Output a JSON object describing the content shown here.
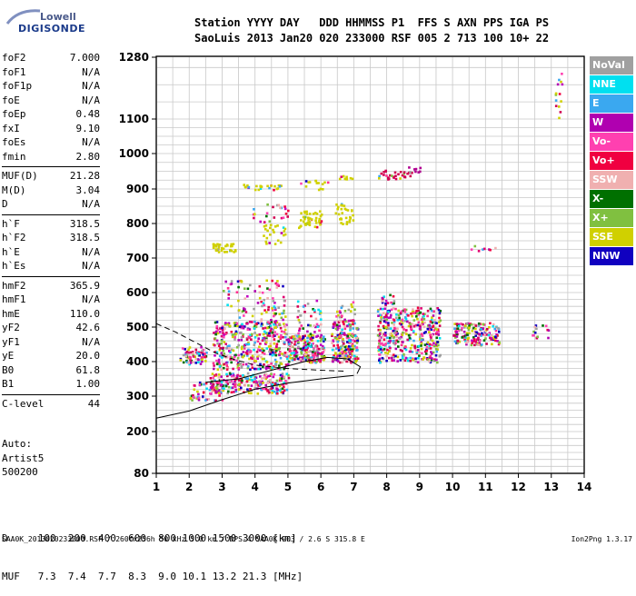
{
  "logo": {
    "line1": "Lowell",
    "line2": "DIGISONDE"
  },
  "header": {
    "row1": "Station YYYY DAY   DDD HHMMSS P1  FFS S AXN PPS IGA PS",
    "row2": "SaoLuis 2013 Jan20 020 233000 RSF 005 2 713 100 10+ 22"
  },
  "params": [
    {
      "name": "foF2",
      "value": "7.000"
    },
    {
      "name": "foF1",
      "value": "N/A"
    },
    {
      "name": "foF1p",
      "value": "N/A"
    },
    {
      "name": "foE",
      "value": "N/A"
    },
    {
      "name": "foEp",
      "value": "0.48"
    },
    {
      "name": "fxI",
      "value": "9.10"
    },
    {
      "name": "foEs",
      "value": "N/A"
    },
    {
      "name": "fmin",
      "value": "2.80"
    },
    {
      "sep": true
    },
    {
      "name": "MUF(D)",
      "value": "21.28"
    },
    {
      "name": "M(D)",
      "value": "3.04"
    },
    {
      "name": "D",
      "value": "N/A"
    },
    {
      "sep": true
    },
    {
      "name": "h`F",
      "value": "318.5"
    },
    {
      "name": "h`F2",
      "value": "318.5"
    },
    {
      "name": "h`E",
      "value": "N/A"
    },
    {
      "name": "h`Es",
      "value": "N/A"
    },
    {
      "sep": true
    },
    {
      "name": "hmF2",
      "value": "365.9"
    },
    {
      "name": "hmF1",
      "value": "N/A"
    },
    {
      "name": "hmE",
      "value": "110.0"
    },
    {
      "name": "yF2",
      "value": "42.6"
    },
    {
      "name": "yF1",
      "value": "N/A"
    },
    {
      "name": "yE",
      "value": "20.0"
    },
    {
      "name": "B0",
      "value": "61.8"
    },
    {
      "name": "B1",
      "value": "1.00"
    },
    {
      "sep": true
    },
    {
      "name": "C-level",
      "value": "44"
    }
  ],
  "auto": {
    "line1": "Auto:",
    "line2": "Artist5",
    "line3": "500200"
  },
  "dmuf": {
    "d_row": "D     100  200  400  600  800 1000 1500 3000 [km]",
    "muf_row": "MUF   7.3  7.4  7.7  8.3  9.0 10.1 13.2 21.3 [MHz]"
  },
  "footer": "SAA0K_2013020233000.RSF / 260fx256h 50 kHz 5.0 km / DPS-4 SAA0K 903 / 2.6 S 315.8 E",
  "version": "Ion2Png 1.3.17",
  "legend": [
    {
      "label": "NoVal",
      "color": "#a0a0a0"
    },
    {
      "label": "NNE",
      "color": "#00e0f0"
    },
    {
      "label": "E",
      "color": "#3aa8f0"
    },
    {
      "label": "W",
      "color": "#b000b0"
    },
    {
      "label": "Vo-",
      "color": "#ff40b0"
    },
    {
      "label": "Vo+",
      "color": "#f00040"
    },
    {
      "label": "SSW",
      "color": "#f0b0b0"
    },
    {
      "label": "X-",
      "color": "#007000"
    },
    {
      "label": "X+",
      "color": "#80c040"
    },
    {
      "label": "SSE",
      "color": "#d0d000"
    },
    {
      "label": "NNW",
      "color": "#1000c0"
    }
  ],
  "chart_data": {
    "type": "scatter",
    "x_ticks": [
      1,
      2,
      3,
      4,
      5,
      6,
      7,
      8,
      9,
      10,
      11,
      12,
      13,
      14
    ],
    "y_ticks": [
      80,
      200,
      300,
      400,
      500,
      600,
      700,
      800,
      900,
      1000,
      1100,
      1280
    ],
    "xlim": [
      1,
      14
    ],
    "ylim": [
      80,
      1280
    ],
    "y_scale": "quasi-log",
    "grid": true,
    "clusters": [
      {
        "x": [
          1.7,
          2.5
        ],
        "y": [
          395,
          445
        ],
        "n": 70
      },
      {
        "x": [
          2.0,
          3.0
        ],
        "y": [
          290,
          345
        ],
        "n": 60
      },
      {
        "x": [
          2.6,
          5.0
        ],
        "y": [
          310,
          370
        ],
        "n": 220
      },
      {
        "x": [
          2.7,
          5.0
        ],
        "y": [
          380,
          520
        ],
        "n": 420
      },
      {
        "x": [
          3.0,
          4.9
        ],
        "y": [
          520,
          640
        ],
        "n": 70
      },
      {
        "x": [
          3.8,
          5.0
        ],
        "y": [
          780,
          860
        ],
        "n": 25
      },
      {
        "x": [
          3.9,
          4.9
        ],
        "y": [
          520,
          570
        ],
        "n": 20
      },
      {
        "x": [
          5.0,
          6.1
        ],
        "y": [
          400,
          480
        ],
        "n": 220
      },
      {
        "x": [
          5.2,
          6.0
        ],
        "y": [
          480,
          580
        ],
        "n": 40
      },
      {
        "x": [
          6.3,
          7.1
        ],
        "y": [
          400,
          520
        ],
        "n": 210
      },
      {
        "x": [
          6.4,
          7.0
        ],
        "y": [
          520,
          580
        ],
        "n": 25
      },
      {
        "x": [
          7.7,
          9.6
        ],
        "y": [
          400,
          560
        ],
        "n": 420
      },
      {
        "x": [
          7.8,
          8.2
        ],
        "y": [
          560,
          600
        ],
        "n": 15
      },
      {
        "x": [
          10.0,
          11.4
        ],
        "y": [
          450,
          515
        ],
        "n": 170
      },
      {
        "x": [
          12.4,
          12.9
        ],
        "y": [
          470,
          510
        ],
        "n": 15
      },
      {
        "x": [
          2.7,
          3.4
        ],
        "y": [
          720,
          745
        ],
        "n": 35,
        "color": "#d0d000"
      },
      {
        "x": [
          3.6,
          4.8
        ],
        "y": [
          900,
          915
        ],
        "n": 25,
        "color": "#d0d000"
      },
      {
        "x": [
          4.2,
          4.9
        ],
        "y": [
          740,
          800
        ],
        "n": 25,
        "color": "#d0d000"
      },
      {
        "x": [
          5.3,
          6.0
        ],
        "y": [
          790,
          840
        ],
        "n": 45,
        "color": "#d0d000"
      },
      {
        "x": [
          5.3,
          6.2
        ],
        "y": [
          900,
          930
        ],
        "n": 15,
        "color": "#d0d000"
      },
      {
        "x": [
          6.4,
          7.0
        ],
        "y": [
          800,
          860
        ],
        "n": 30,
        "color": "#d0d000"
      },
      {
        "x": [
          6.5,
          7.1
        ],
        "y": [
          930,
          945
        ],
        "n": 10,
        "color": "#d0d000"
      },
      {
        "x": [
          7.7,
          8.8
        ],
        "y": [
          930,
          955
        ],
        "n": 30,
        "color": "#d00050"
      },
      {
        "x": [
          8.6,
          9.0
        ],
        "y": [
          950,
          965
        ],
        "n": 8,
        "color": "#b00090"
      },
      {
        "x": [
          10.5,
          11.4
        ],
        "y": [
          700,
          740
        ],
        "n": 8
      },
      {
        "x": [
          13.1,
          13.3
        ],
        "y": [
          1100,
          1250
        ],
        "n": 14
      }
    ],
    "curve_solid": [
      [
        1.0,
        238
      ],
      [
        2.0,
        258
      ],
      [
        3.0,
        290
      ],
      [
        4.0,
        320
      ],
      [
        5.0,
        338
      ],
      [
        6.0,
        350
      ],
      [
        7.0,
        360
      ]
    ],
    "curve_dashed": [
      [
        1.0,
        510
      ],
      [
        1.6,
        485
      ],
      [
        2.2,
        455
      ],
      [
        2.8,
        425
      ],
      [
        3.4,
        405
      ],
      [
        4.0,
        390
      ],
      [
        5.0,
        380
      ],
      [
        6.0,
        375
      ],
      [
        6.8,
        372
      ]
    ],
    "curve_lower_solid": [
      [
        2.5,
        340
      ],
      [
        3.5,
        350
      ],
      [
        4.5,
        375
      ],
      [
        5.5,
        400
      ],
      [
        6.2,
        412
      ],
      [
        6.8,
        408
      ],
      [
        7.2,
        385
      ],
      [
        7.1,
        365
      ]
    ]
  }
}
